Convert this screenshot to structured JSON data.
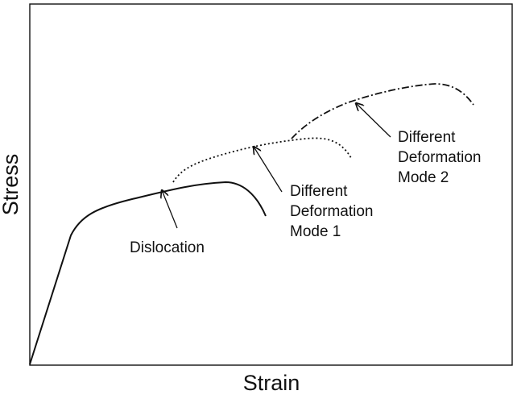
{
  "colors": {
    "ink": "#111111",
    "background": "#ffffff"
  },
  "axes": {
    "xlabel": "Strain",
    "ylabel": "Stress"
  },
  "curves": [
    {
      "name": "dislocation-curve",
      "style": "solid"
    },
    {
      "name": "deformation-mode-1-curve",
      "style": "dotted"
    },
    {
      "name": "deformation-mode-2-curve",
      "style": "dash-dot"
    }
  ],
  "annotations": {
    "dislocation": {
      "lines": [
        "Dislocation"
      ]
    },
    "mode1": {
      "lines": [
        "Different",
        "Deformation",
        "Mode 1"
      ]
    },
    "mode2": {
      "lines": [
        "Different",
        "Deformation",
        "Mode 2"
      ]
    }
  }
}
